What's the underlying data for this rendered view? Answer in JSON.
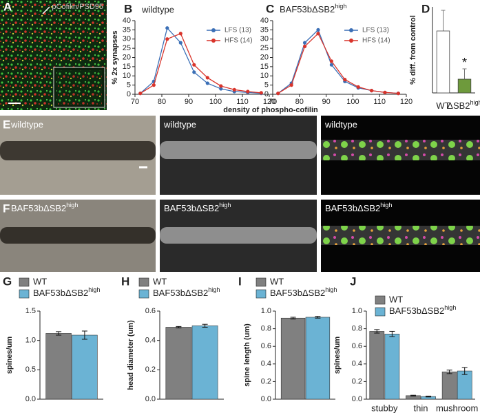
{
  "chart_data": [
    {
      "type": "line",
      "letter": "B",
      "title": "wildtype",
      "ylabel": "% 2x synapses",
      "xlabel": "density of phospho-cofilin",
      "x": [
        72,
        77,
        82,
        87,
        92,
        97,
        102,
        107,
        112,
        117
      ],
      "series": [
        {
          "name": "LFS (13)",
          "color": "#3b6fb6",
          "values": [
            0.5,
            7,
            36,
            28,
            12,
            6,
            3,
            1.5,
            1,
            0.5
          ]
        },
        {
          "name": "HFS (14)",
          "color": "#d9342b",
          "values": [
            0.5,
            5,
            30,
            33,
            16,
            9,
            4.5,
            2.5,
            1.5,
            0.8
          ]
        }
      ],
      "xlim": [
        70,
        120
      ],
      "xticks": [
        70,
        80,
        90,
        100,
        110,
        120
      ],
      "ylim": [
        0,
        40
      ],
      "yticks": [
        0,
        5,
        10,
        15,
        20,
        25,
        30,
        35,
        40
      ]
    },
    {
      "type": "line",
      "letter": "C",
      "title": {
        "text": "BAF53bΔSB2",
        "sup": "high"
      },
      "x": [
        72,
        77,
        82,
        87,
        92,
        97,
        102,
        107,
        112,
        117
      ],
      "series": [
        {
          "name": "LFS (13)",
          "color": "#3b6fb6",
          "values": [
            0.5,
            6,
            28,
            35,
            16,
            7,
            3.5,
            2,
            1,
            0.5
          ]
        },
        {
          "name": "HFS (14)",
          "color": "#d9342b",
          "values": [
            0.5,
            5,
            26,
            33,
            18,
            8,
            4,
            2,
            1,
            0.5
          ]
        }
      ],
      "xlim": [
        70,
        120
      ],
      "xticks": [
        70,
        80,
        90,
        100,
        110,
        120
      ],
      "ylim": [
        0,
        40
      ],
      "yticks": [
        0,
        5,
        10,
        15,
        20,
        25,
        30,
        35,
        40
      ]
    },
    {
      "type": "bar",
      "letter": "D",
      "ylabel": "% diff. from control",
      "categories": [
        {
          "text": "WT"
        },
        {
          "text": "ΔSB2",
          "sup": "high"
        }
      ],
      "values": [
        36,
        8
      ],
      "errors": [
        12,
        6
      ],
      "colors": [
        "#ffffff",
        "#6e9a3c"
      ],
      "annotation": "*",
      "ylim": [
        0,
        50
      ]
    },
    {
      "type": "grouped_bar",
      "letter": "G",
      "ylabel": "spines/um",
      "series": [
        {
          "name": "WT",
          "color": "#808080",
          "values": [
            1.12
          ],
          "errors": [
            0.03
          ]
        },
        {
          "name": {
            "text": "BAF53bΔSB2",
            "sup": "high"
          },
          "color": "#6bb3d4",
          "values": [
            1.09
          ],
          "errors": [
            0.07
          ]
        }
      ],
      "ylim": [
        0,
        1.5
      ],
      "yticks": [
        {
          "value": 0,
          "label": "0.0"
        },
        0.5,
        {
          "value": 1,
          "label": "1.0"
        },
        1.5
      ]
    },
    {
      "type": "grouped_bar",
      "letter": "H",
      "ylabel": "head diameter (um)",
      "series": [
        {
          "name": "WT",
          "color": "#808080",
          "values": [
            0.49
          ],
          "errors": [
            0.005
          ]
        },
        {
          "name": {
            "text": "BAF53bΔSB2",
            "sup": "high"
          },
          "color": "#6bb3d4",
          "values": [
            0.5
          ],
          "errors": [
            0.01
          ]
        }
      ],
      "ylim": [
        0,
        0.6
      ],
      "yticks": [
        {
          "value": 0,
          "label": "0.0"
        },
        0.2,
        0.4,
        0.6
      ]
    },
    {
      "type": "grouped_bar",
      "letter": "I",
      "ylabel": "spine length (um)",
      "series": [
        {
          "name": "WT",
          "color": "#808080",
          "values": [
            0.92
          ],
          "errors": [
            0.01
          ]
        },
        {
          "name": {
            "text": "BAF53bΔSB2",
            "sup": "high"
          },
          "color": "#6bb3d4",
          "values": [
            0.93
          ],
          "errors": [
            0.01
          ]
        }
      ],
      "ylim": [
        0,
        1
      ],
      "yticks": [
        {
          "value": 0,
          "label": "0.0"
        },
        0.2,
        0.4,
        0.6,
        0.8,
        {
          "value": 1,
          "label": "1.0"
        }
      ]
    },
    {
      "type": "grouped_bar",
      "letter": "J",
      "ylabel": "spines/um",
      "categories": [
        "stubby",
        "thin",
        "mushroom"
      ],
      "series": [
        {
          "name": "WT",
          "color": "#808080",
          "values": [
            0.77,
            0.04,
            0.31
          ],
          "errors": [
            0.02,
            0.005,
            0.02
          ]
        },
        {
          "name": {
            "text": "BAF53bΔSB2",
            "sup": "high"
          },
          "color": "#6bb3d4",
          "values": [
            0.74,
            0.03,
            0.32
          ],
          "errors": [
            0.03,
            0.005,
            0.04
          ]
        }
      ],
      "ylim": [
        0,
        1
      ],
      "yticks": [
        {
          "value": 0,
          "label": "0.0"
        },
        0.2,
        0.4,
        0.6,
        0.8,
        {
          "value": 1,
          "label": "1.0"
        }
      ]
    }
  ],
  "figure_panels": {
    "A": {
      "letter": "A",
      "label": "pCofilin/PSD95"
    },
    "E": {
      "letter": "E",
      "labels": [
        "wildtype",
        "wildtype",
        "wildtype"
      ]
    },
    "F": {
      "letter": "F",
      "labels": [
        {
          "text": "BAF53bΔSB2",
          "sup": "high"
        },
        {
          "text": "BAF53bΔSB2",
          "sup": "high"
        },
        {
          "text": "BAF53bΔSB2",
          "sup": "high"
        }
      ]
    }
  }
}
